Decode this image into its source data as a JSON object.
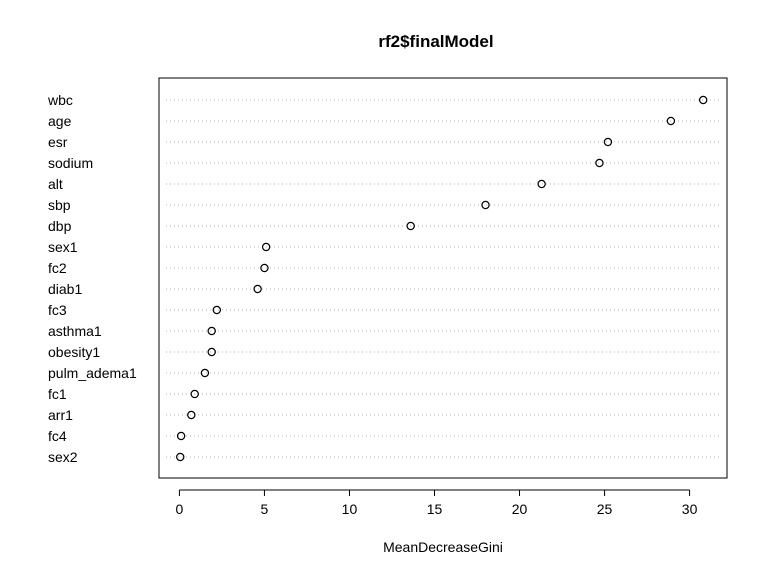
{
  "chart_data": {
    "type": "scatter",
    "title": "rf2$finalModel",
    "xlabel": "MeanDecreaseGini",
    "ylabel": "",
    "xlim": [
      -1.2,
      32.2
    ],
    "xticks": [
      0,
      5,
      10,
      15,
      20,
      25,
      30
    ],
    "grid": "horizontal dotted guide lines",
    "categories": [
      "wbc",
      "age",
      "esr",
      "sodium",
      "alt",
      "sbp",
      "dbp",
      "sex1",
      "fc2",
      "diab1",
      "fc3",
      "asthma1",
      "obesity1",
      "pulm_adema1",
      "fc1",
      "arr1",
      "fc4",
      "sex2"
    ],
    "values": [
      30.8,
      28.9,
      25.2,
      24.7,
      21.3,
      18.0,
      13.6,
      5.1,
      5.0,
      4.6,
      2.2,
      1.9,
      1.9,
      1.5,
      0.9,
      0.7,
      0.1,
      0.05
    ]
  }
}
